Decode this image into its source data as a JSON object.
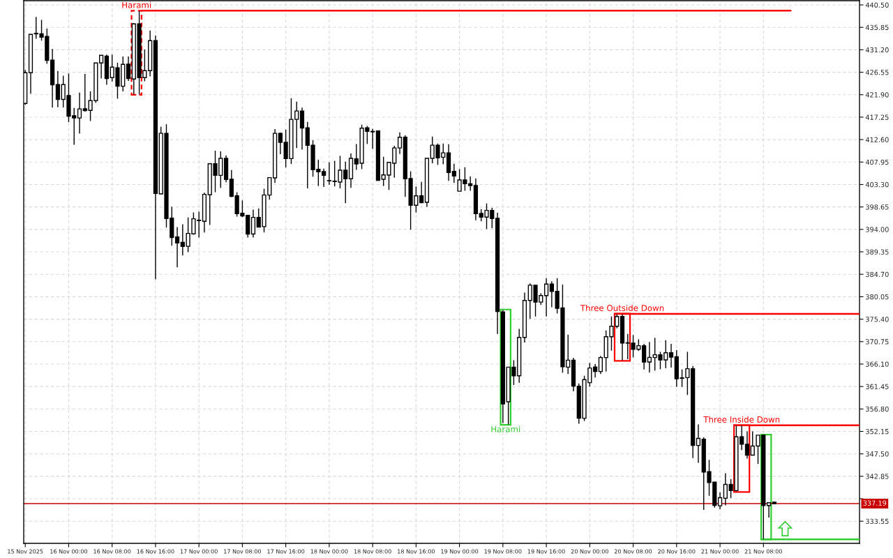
{
  "chart_data": {
    "type": "candlestick",
    "x": [
      "2025-11-15T16:00",
      "2025-11-15T17:00",
      "2025-11-15T18:00",
      "2025-11-15T19:00",
      "2025-11-15T20:00",
      "2025-11-15T21:00",
      "2025-11-15T22:00",
      "2025-11-15T23:00",
      "2025-11-16T00:00",
      "2025-11-16T01:00",
      "2025-11-16T02:00",
      "2025-11-16T03:00",
      "2025-11-16T04:00",
      "2025-11-16T05:00",
      "2025-11-16T06:00",
      "2025-11-16T07:00",
      "2025-11-16T08:00",
      "2025-11-16T09:00",
      "2025-11-16T10:00",
      "2025-11-16T11:00",
      "2025-11-16T12:00",
      "2025-11-16T13:00",
      "2025-11-16T14:00",
      "2025-11-16T15:00",
      "2025-11-16T16:00",
      "2025-11-16T17:00",
      "2025-11-16T18:00",
      "2025-11-16T19:00",
      "2025-11-16T20:00",
      "2025-11-16T21:00",
      "2025-11-16T22:00",
      "2025-11-16T23:00",
      "2025-11-17T00:00",
      "2025-11-17T01:00",
      "2025-11-17T02:00",
      "2025-11-17T03:00",
      "2025-11-17T04:00",
      "2025-11-17T05:00",
      "2025-11-17T06:00",
      "2025-11-17T07:00",
      "2025-11-17T08:00",
      "2025-11-17T09:00",
      "2025-11-17T10:00",
      "2025-11-17T11:00",
      "2025-11-17T12:00",
      "2025-11-17T13:00",
      "2025-11-17T14:00",
      "2025-11-17T15:00",
      "2025-11-17T16:00",
      "2025-11-17T17:00",
      "2025-11-17T18:00",
      "2025-11-17T19:00",
      "2025-11-17T20:00",
      "2025-11-17T21:00",
      "2025-11-17T22:00",
      "2025-11-17T23:00",
      "2025-11-18T00:00",
      "2025-11-18T01:00",
      "2025-11-18T02:00",
      "2025-11-18T03:00",
      "2025-11-18T04:00",
      "2025-11-18T05:00",
      "2025-11-18T06:00",
      "2025-11-18T07:00",
      "2025-11-18T08:00",
      "2025-11-18T09:00",
      "2025-11-18T10:00",
      "2025-11-18T11:00",
      "2025-11-18T12:00",
      "2025-11-18T13:00",
      "2025-11-18T14:00",
      "2025-11-18T15:00",
      "2025-11-18T16:00",
      "2025-11-18T17:00",
      "2025-11-18T18:00",
      "2025-11-18T19:00",
      "2025-11-18T20:00",
      "2025-11-18T21:00",
      "2025-11-18T22:00",
      "2025-11-18T23:00",
      "2025-11-19T00:00",
      "2025-11-19T01:00",
      "2025-11-19T02:00",
      "2025-11-19T03:00",
      "2025-11-19T04:00",
      "2025-11-19T05:00",
      "2025-11-19T06:00",
      "2025-11-19T07:00",
      "2025-11-19T08:00",
      "2025-11-19T09:00",
      "2025-11-19T10:00",
      "2025-11-19T11:00",
      "2025-11-19T12:00",
      "2025-11-19T13:00",
      "2025-11-19T14:00",
      "2025-11-19T15:00",
      "2025-11-19T16:00",
      "2025-11-19T17:00",
      "2025-11-19T18:00",
      "2025-11-19T19:00",
      "2025-11-19T20:00",
      "2025-11-19T21:00",
      "2025-11-19T22:00",
      "2025-11-19T23:00",
      "2025-11-20T00:00",
      "2025-11-20T01:00",
      "2025-11-20T02:00",
      "2025-11-20T03:00",
      "2025-11-20T04:00",
      "2025-11-20T05:00",
      "2025-11-20T06:00",
      "2025-11-20T07:00",
      "2025-11-20T08:00",
      "2025-11-20T09:00",
      "2025-11-20T10:00",
      "2025-11-20T11:00",
      "2025-11-20T12:00",
      "2025-11-20T13:00",
      "2025-11-20T14:00",
      "2025-11-20T15:00",
      "2025-11-20T16:00",
      "2025-11-20T17:00",
      "2025-11-20T18:00",
      "2025-11-20T19:00",
      "2025-11-20T20:00",
      "2025-11-20T21:00",
      "2025-11-20T22:00",
      "2025-11-20T23:00",
      "2025-11-21T00:00",
      "2025-11-21T01:00",
      "2025-11-21T02:00",
      "2025-11-21T03:00",
      "2025-11-21T04:00",
      "2025-11-21T05:00",
      "2025-11-21T06:00",
      "2025-11-21T07:00",
      "2025-11-21T08:00",
      "2025-11-21T09:00",
      "2025-11-21T10:00"
    ],
    "ohlc": [
      [
        420.1,
        427.0,
        419.8,
        426.45
      ],
      [
        426.45,
        434.39,
        422.1,
        434.39
      ],
      [
        434.5,
        438.0,
        433.5,
        434.6
      ],
      [
        434.5,
        437.4,
        433.1,
        433.8
      ],
      [
        433.96,
        435.6,
        428.3,
        429.0
      ],
      [
        429.05,
        431.36,
        419.24,
        423.95
      ],
      [
        424.0,
        426.8,
        419.3,
        420.92
      ],
      [
        420.92,
        425.83,
        419.24,
        424.0
      ],
      [
        421.74,
        426.3,
        416.21,
        417.46
      ],
      [
        417.55,
        419.14,
        411.54,
        417.08
      ],
      [
        417.08,
        422.32,
        413.85,
        418.95
      ],
      [
        419.0,
        426.2,
        418.4,
        418.6
      ],
      [
        418.65,
        422.6,
        416.45,
        420.68
      ],
      [
        420.68,
        428.5,
        420.2,
        428.48
      ],
      [
        428.48,
        430.1,
        425.25,
        430.06
      ],
      [
        429.9,
        430.2,
        423.95,
        425.25
      ],
      [
        425.44,
        430.2,
        424.63,
        427.61
      ],
      [
        427.46,
        428.52,
        421.07,
        423.66
      ],
      [
        423.66,
        429.82,
        422.6,
        428.19
      ],
      [
        428.24,
        429.82,
        424.77,
        425.25
      ],
      [
        425.16,
        436.7,
        421.98,
        436.56
      ],
      [
        436.56,
        439.2,
        421.98,
        425.44
      ],
      [
        425.44,
        431.26,
        424.68,
        426.89
      ],
      [
        426.89,
        435.21,
        425.69,
        433.09
      ],
      [
        433.09,
        434.15,
        383.65,
        401.44
      ],
      [
        401.35,
        415.25,
        401.3,
        413.9
      ],
      [
        413.9,
        415.78,
        394.37,
        396.25
      ],
      [
        396.35,
        398.66,
        390.62,
        392.3
      ],
      [
        392.45,
        394.47,
        386.15,
        391.2
      ],
      [
        391.3,
        395.05,
        388.6,
        390.48
      ],
      [
        390.5,
        396.49,
        389.3,
        393.17
      ],
      [
        393.08,
        397.5,
        392.9,
        396.2
      ],
      [
        395.83,
        397.65,
        392.3,
        395.9
      ],
      [
        395.67,
        401.6,
        393.37,
        401.25
      ],
      [
        401.16,
        407.6,
        394.9,
        407.6
      ],
      [
        407.6,
        410.3,
        401.7,
        405.2
      ],
      [
        405.2,
        410.15,
        402.6,
        408.71
      ],
      [
        408.71,
        409.34,
        403.75,
        404.33
      ],
      [
        404.38,
        406.3,
        400.7,
        400.82
      ],
      [
        400.96,
        401.7,
        396.64,
        397.26
      ],
      [
        397.36,
        400.0,
        396.54,
        396.78
      ],
      [
        396.9,
        396.9,
        392.3,
        393.03
      ],
      [
        393.03,
        398.08,
        392.3,
        396.49
      ],
      [
        396.49,
        398.32,
        394.4,
        394.47
      ],
      [
        394.57,
        402.41,
        393.37,
        401.11
      ],
      [
        401.11,
        404.72,
        400.15,
        404.72
      ],
      [
        404.67,
        414.77,
        403.61,
        413.9
      ],
      [
        413.9,
        414.05,
        409.57,
        412.03
      ],
      [
        412.03,
        414.67,
        406.83,
        408.66
      ],
      [
        408.66,
        421.17,
        407.55,
        416.79
      ],
      [
        416.79,
        420.45,
        410.83,
        418.52
      ],
      [
        418.52,
        419.24,
        410.54,
        415.0
      ],
      [
        415.06,
        416.26,
        402.5,
        411.4
      ],
      [
        411.45,
        412.46,
        404.91,
        406.35
      ],
      [
        406.45,
        408.42,
        402.98,
        405.92
      ],
      [
        405.97,
        406.59,
        402.79,
        405.2
      ],
      [
        404.05,
        407.9,
        403.27,
        404.1
      ],
      [
        404.0,
        408.18,
        402.89,
        403.9
      ],
      [
        403.8,
        409.24,
        402.5,
        406.26
      ],
      [
        406.26,
        408.03,
        399.43,
        404.48
      ],
      [
        404.48,
        409.72,
        402.6,
        408.71
      ],
      [
        408.61,
        411.69,
        406.35,
        407.55
      ],
      [
        407.7,
        415.68,
        406.5,
        414.96
      ],
      [
        415.06,
        415.4,
        411.69,
        414.29
      ],
      [
        414.3,
        414.82,
        410.68,
        414.2
      ],
      [
        414.38,
        414.38,
        404.04,
        404.14
      ],
      [
        404.38,
        409.04,
        402.98,
        405.29
      ],
      [
        405.25,
        407.89,
        402.17,
        407.89
      ],
      [
        407.7,
        411.3,
        404.72,
        410.87
      ],
      [
        410.87,
        414.1,
        409.62,
        413.09
      ],
      [
        413.09,
        413.47,
        400.72,
        404.48
      ],
      [
        404.52,
        406.02,
        393.94,
        398.99
      ],
      [
        398.99,
        402.89,
        397.5,
        400.96
      ],
      [
        400.96,
        403.85,
        399.43,
        399.52
      ],
      [
        399.62,
        408.71,
        398.66,
        408.71
      ],
      [
        408.71,
        413.23,
        407.7,
        411.45
      ],
      [
        411.45,
        411.79,
        407.36,
        408.8
      ],
      [
        408.95,
        411.79,
        407.5,
        409.86
      ],
      [
        409.86,
        411.64,
        404.04,
        405.77
      ],
      [
        406.01,
        407.6,
        403.61,
        405.05
      ],
      [
        401.9,
        406.49,
        401.9,
        404.23
      ],
      [
        404.23,
        406.88,
        402.0,
        403.46
      ],
      [
        403.46,
        404.96,
        402.0,
        403.08
      ],
      [
        403.08,
        404.57,
        395.91,
        397.26
      ],
      [
        397.31,
        398.22,
        395.67,
        396.54
      ],
      [
        396.54,
        399.37,
        394.08,
        397.93
      ],
      [
        397.93,
        398.46,
        394.23,
        396.25
      ],
      [
        396.3,
        397.45,
        372.34,
        377.0
      ],
      [
        376.91,
        377.3,
        353.9,
        357.86
      ],
      [
        358.29,
        365.5,
        353.6,
        365.46
      ],
      [
        365.46,
        366.91,
        361.76,
        363.68
      ],
      [
        363.68,
        373.4,
        362.24,
        371.62
      ],
      [
        371.62,
        380.9,
        370.56,
        379.27
      ],
      [
        379.27,
        382.83,
        375.47,
        382.44
      ],
      [
        382.44,
        382.44,
        375.95,
        378.93
      ],
      [
        378.93,
        380.76,
        378.35,
        380.28
      ],
      [
        380.28,
        383.89,
        375.95,
        382.68
      ],
      [
        382.68,
        383.26,
        377.87,
        381.15
      ],
      [
        381.15,
        383.89,
        376.58,
        377.63
      ],
      [
        377.73,
        382.59,
        364.31,
        365.56
      ],
      [
        365.46,
        372.2,
        364.02,
        366.91
      ],
      [
        366.91,
        367.39,
        360.46,
        361.52
      ],
      [
        361.52,
        362.1,
        353.73,
        354.88
      ],
      [
        354.88,
        363.68,
        354.3,
        362.87
      ],
      [
        362.24,
        366.33,
        361.43,
        365.28
      ],
      [
        365.47,
        366.09,
        363.3,
        364.55
      ],
      [
        364.55,
        367.78,
        364.02,
        367.44
      ],
      [
        367.44,
        373.07,
        364.55,
        371.77
      ],
      [
        371.77,
        375.95,
        368.88,
        373.93
      ],
      [
        373.93,
        376.44,
        373.5,
        375.95
      ],
      [
        375.95,
        376.44,
        366.85,
        370.44
      ],
      [
        370.5,
        372.35,
        367.1,
        370.44
      ],
      [
        370.44,
        372.11,
        367.49,
        369.17
      ],
      [
        369.17,
        371.24,
        368.83,
        369.9
      ],
      [
        369.9,
        370.28,
        364.98,
        366.52
      ],
      [
        366.52,
        370.66,
        364.36,
        367.49
      ],
      [
        367.44,
        371.53,
        364.74,
        368.02
      ],
      [
        368.02,
        368.64,
        365.03,
        366.96
      ],
      [
        366.96,
        371.05,
        365.23,
        368.45
      ],
      [
        368.45,
        370.28,
        365.37,
        367.54
      ],
      [
        367.63,
        368.98,
        361.38,
        363.06
      ],
      [
        363.25,
        364.99,
        361.38,
        363.15
      ],
      [
        363.3,
        368.64,
        359.7,
        365.13
      ],
      [
        365.13,
        365.7,
        346.61,
        349.25
      ],
      [
        349.25,
        353.58,
        345.65,
        350.7
      ],
      [
        350.55,
        350.93,
        335.88,
        343.72
      ],
      [
        343.82,
        346.27,
        338.81,
        341.56
      ],
      [
        341.65,
        341.65,
        336.36,
        336.84
      ],
      [
        336.75,
        339.49,
        336.03,
        338.43
      ],
      [
        338.29,
        343.48,
        336.85,
        341.17
      ],
      [
        341.17,
        342.28,
        338.34,
        339.88
      ],
      [
        339.88,
        353.34,
        339.7,
        351.04
      ],
      [
        351.04,
        353.34,
        348.3,
        349.5
      ],
      [
        349.5,
        352.14,
        346.51,
        347.24
      ],
      [
        347.24,
        352.14,
        347.2,
        349.11
      ],
      [
        349.11,
        351.37,
        345.41,
        351.37
      ],
      [
        351.37,
        351.37,
        329.87,
        336.8
      ],
      [
        336.8,
        337.4,
        334.3,
        337.37
      ],
      [
        337.5,
        337.6,
        337.1,
        337.19
      ]
    ],
    "series": [
      {
        "type": "line",
        "color": "#ff0000",
        "x": [
          "2025-11-16T13:25",
          "2025-11-21T13:00"
        ],
        "values": [
          439.3,
          439.3
        ]
      },
      {
        "type": "line",
        "color": "#ff0000",
        "x": [
          "2025-11-20T04:35",
          "2025-11-22T01:42"
        ],
        "values": [
          376.5,
          376.5
        ]
      },
      {
        "type": "line",
        "color": "#ff0000",
        "x": [
          "2025-11-21T02:35",
          "2025-11-22T01:42"
        ],
        "values": [
          353.4,
          353.4
        ]
      },
      {
        "type": "line",
        "color": "#32cd32",
        "x": [
          "2025-11-21T07:35",
          "2025-11-22T01:42"
        ],
        "values": [
          329.8,
          329.8
        ]
      }
    ],
    "annotations": [
      "Harami",
      "Harami",
      "Three Outside Down",
      "Three Inside Down"
    ],
    "ref_lines": [
      {
        "axis": "y",
        "value": 337.19,
        "label": "337.19",
        "color": "#c80000"
      }
    ],
    "xlim": [
      "2025-11-15T15:43",
      "2025-11-22T01:42"
    ],
    "xticks": [
      {
        "value": "2025-11-15T16:00",
        "label": "15 Nov 2025"
      },
      {
        "value": "2025-11-16T00:00",
        "label": "16 Nov 00:00"
      },
      {
        "value": "2025-11-16T08:00",
        "label": "16 Nov 08:00"
      },
      {
        "value": "2025-11-16T16:00",
        "label": "16 Nov 16:00"
      },
      {
        "value": "2025-11-17T00:00",
        "label": "17 Nov 00:00"
      },
      {
        "value": "2025-11-17T08:00",
        "label": "17 Nov 08:00"
      },
      {
        "value": "2025-11-17T16:00",
        "label": "17 Nov 16:00"
      },
      {
        "value": "2025-11-18T00:00",
        "label": "18 Nov 00:00"
      },
      {
        "value": "2025-11-18T08:00",
        "label": "18 Nov 08:00"
      },
      {
        "value": "2025-11-18T16:00",
        "label": "18 Nov 16:00"
      },
      {
        "value": "2025-11-19T00:00",
        "label": "19 Nov 00:00"
      },
      {
        "value": "2025-11-19T08:00",
        "label": "19 Nov 08:00"
      },
      {
        "value": "2025-11-19T16:00",
        "label": "19 Nov 16:00"
      },
      {
        "value": "2025-11-20T00:00",
        "label": "20 Nov 00:00"
      },
      {
        "value": "2025-11-20T08:00",
        "label": "20 Nov 08:00"
      },
      {
        "value": "2025-11-20T16:00",
        "label": "20 Nov 16:00"
      },
      {
        "value": "2025-11-21T00:00",
        "label": "21 Nov 00:00"
      },
      {
        "value": "2025-11-21T08:00",
        "label": "21 Nov 08:00"
      }
    ],
    "ylim": [
      328.96,
      441.37
    ],
    "yticks": [
      {
        "value": 440.5,
        "label": "440.50"
      },
      {
        "value": 435.85,
        "label": "435.85"
      },
      {
        "value": 431.2,
        "label": "431.20"
      },
      {
        "value": 426.55,
        "label": "426.55"
      },
      {
        "value": 421.9,
        "label": "421.90"
      },
      {
        "value": 417.25,
        "label": "417.25"
      },
      {
        "value": 412.6,
        "label": "412.60"
      },
      {
        "value": 407.95,
        "label": "407.95"
      },
      {
        "value": 403.3,
        "label": "403.30"
      },
      {
        "value": 398.65,
        "label": "398.65"
      },
      {
        "value": 394.0,
        "label": "394.00"
      },
      {
        "value": 389.35,
        "label": "389.35"
      },
      {
        "value": 384.7,
        "label": "384.70"
      },
      {
        "value": 380.05,
        "label": "380.05"
      },
      {
        "value": 375.4,
        "label": "375.40"
      },
      {
        "value": 370.75,
        "label": "370.75"
      },
      {
        "value": 366.1,
        "label": "366.10"
      },
      {
        "value": 361.45,
        "label": "361.45"
      },
      {
        "value": 356.8,
        "label": "356.80"
      },
      {
        "value": 352.15,
        "label": "352.15"
      },
      {
        "value": 347.5,
        "label": "347.50"
      },
      {
        "value": 342.85,
        "label": "342.85"
      },
      {
        "value": 338.2,
        "label": null
      },
      {
        "value": 333.55,
        "label": "333.55"
      }
    ],
    "grid": true
  }
}
